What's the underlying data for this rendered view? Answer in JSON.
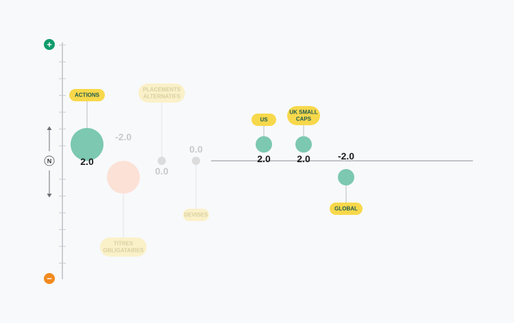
{
  "colors": {
    "positive_bubble": "#7cc8b0",
    "negative_bubble_faded": "#fbe1d6",
    "neutral_bubble_faded": "#dcdcdc",
    "label_fill": "#f7d84b",
    "label_fill_faded": "#faf1c9",
    "label_text": "#1f5a4f",
    "plus_icon": "#0f9b6b",
    "minus_icon": "#f28a1e",
    "axis": "#9aa0a6"
  },
  "axis": {
    "top_symbol": "+",
    "middle_symbol": "N",
    "bottom_symbol": "−",
    "ylim": [
      -7,
      7
    ]
  },
  "chart_data": {
    "type": "scatter",
    "x": [
      "ACTIONS",
      "TITRES OBLIGATAIRES",
      "PLACEMENTS ALTERNATIFS",
      "DEVISES",
      "US",
      "UK SMALL CAPS",
      "GLOBAL"
    ],
    "y": [
      2.0,
      -2.0,
      0.0,
      0.0,
      2.0,
      2.0,
      -2.0
    ],
    "points": [
      {
        "name": "ACTIONS",
        "value": 2.0,
        "value_label": "2.0",
        "lines": [
          "ACTIONS"
        ],
        "group": "main",
        "faded": false
      },
      {
        "name": "TITRES OBLIGATAIRES",
        "value": -2.0,
        "value_label": "-2.0",
        "lines": [
          "TITRES",
          "OBLIGATAIRES"
        ],
        "group": "main",
        "faded": true
      },
      {
        "name": "PLACEMENTS ALTERNATIFS",
        "value": 0.0,
        "value_label": "0.0",
        "lines": [
          "PLACEMENTS",
          "ALTERNATIFS"
        ],
        "group": "main",
        "faded": true
      },
      {
        "name": "DEVISES",
        "value": 0.0,
        "value_label": "0.0",
        "lines": [
          "DEVISES"
        ],
        "group": "main",
        "faded": true
      },
      {
        "name": "US",
        "value": 2.0,
        "value_label": "2.0",
        "lines": [
          "US"
        ],
        "group": "sub",
        "faded": false
      },
      {
        "name": "UK SMALL CAPS",
        "value": 2.0,
        "value_label": "2.0",
        "lines": [
          "UK SMALL",
          "CAPS"
        ],
        "group": "sub",
        "faded": false
      },
      {
        "name": "GLOBAL",
        "value": -2.0,
        "value_label": "-2.0",
        "lines": [
          "GLOBAL"
        ],
        "group": "sub",
        "faded": false
      }
    ]
  }
}
